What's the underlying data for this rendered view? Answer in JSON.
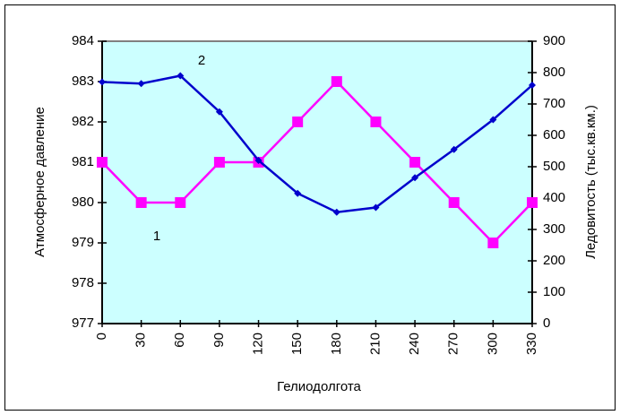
{
  "chart_data": {
    "type": "line",
    "x_label": "Гелиодолгота",
    "y_label": "Атмосферное давление",
    "y2_label": "Ледовитость (тыс.кв.км.)",
    "x": [
      0,
      30,
      60,
      90,
      120,
      150,
      180,
      210,
      240,
      270,
      300,
      330
    ],
    "xlim": [
      0,
      330
    ],
    "xticks": [
      0,
      30,
      60,
      90,
      120,
      150,
      180,
      210,
      240,
      270,
      300,
      330
    ],
    "ylim": [
      977,
      984
    ],
    "yticks": [
      977,
      978,
      979,
      980,
      981,
      982,
      983,
      984
    ],
    "y2lim": [
      0,
      900
    ],
    "y2ticks": [
      0,
      100,
      200,
      300,
      400,
      500,
      600,
      700,
      800,
      900
    ],
    "plot_background": "#ccffff",
    "series": [
      {
        "name": "1",
        "color": "#ff00ff",
        "marker": "square",
        "values": [
          981,
          980,
          980,
          981,
          981,
          982,
          983,
          982,
          981,
          980,
          979,
          980
        ]
      },
      {
        "name": "2",
        "color": "#0000cc",
        "marker": "diamond",
        "axis": "y2",
        "values": [
          770,
          765,
          790,
          675,
          520,
          415,
          355,
          370,
          465,
          555,
          650,
          760
        ]
      }
    ]
  }
}
